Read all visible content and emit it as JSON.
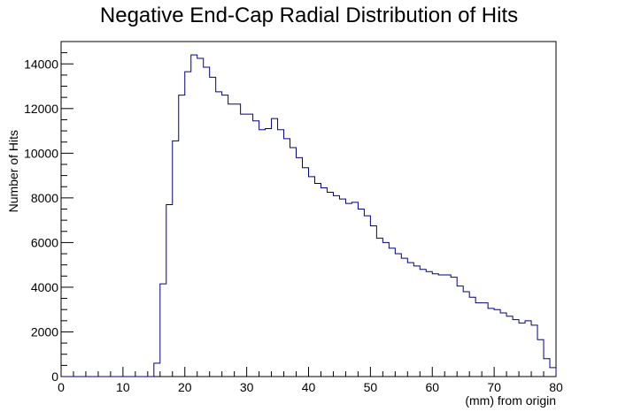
{
  "chart_data": {
    "type": "histogram",
    "title": "Negative End-Cap Radial Distribution of Hits",
    "xlabel": "(mm) from origin",
    "ylabel": "Number of Hits",
    "xlim": [
      0,
      80
    ],
    "ylim": [
      0,
      15000
    ],
    "x_ticks": [
      0,
      10,
      20,
      30,
      40,
      50,
      60,
      70,
      80
    ],
    "y_ticks": [
      0,
      2000,
      4000,
      6000,
      8000,
      10000,
      12000,
      14000
    ],
    "bin_edges_start": 0,
    "bin_width": 1,
    "line_color": "#000080",
    "values": [
      0,
      0,
      0,
      0,
      0,
      0,
      0,
      0,
      0,
      0,
      0,
      0,
      0,
      0,
      0,
      600,
      4150,
      7700,
      10550,
      12600,
      13650,
      14400,
      14250,
      13850,
      13400,
      12750,
      12600,
      12200,
      12200,
      11750,
      11750,
      11450,
      11050,
      11100,
      11550,
      11050,
      10650,
      10250,
      9800,
      9350,
      8950,
      8650,
      8450,
      8250,
      8100,
      7950,
      7750,
      7800,
      7500,
      7200,
      6750,
      6200,
      6000,
      5750,
      5500,
      5300,
      5100,
      4950,
      4800,
      4700,
      4600,
      4550,
      4550,
      4450,
      4050,
      3800,
      3550,
      3300,
      3300,
      3050,
      3000,
      2850,
      2700,
      2550,
      2400,
      2500,
      2300,
      1650,
      800,
      400,
      0
    ]
  }
}
